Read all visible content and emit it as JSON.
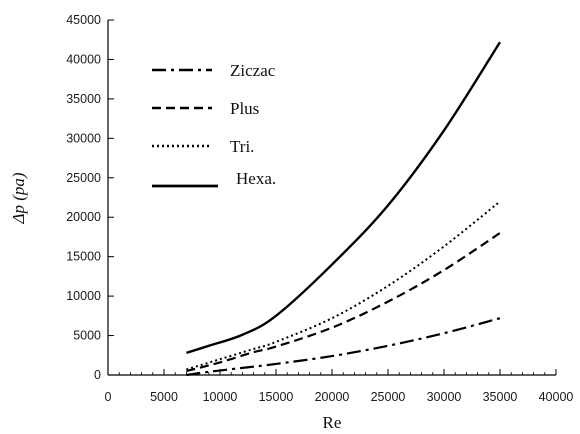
{
  "chart_data": {
    "type": "line",
    "title": "",
    "xlabel": "Re",
    "ylabel": "Δp (pa)",
    "xlim": [
      0,
      40000
    ],
    "ylim": [
      0,
      45000
    ],
    "xticks": [
      "0",
      "5000",
      "10000",
      "15000",
      "20000",
      "25000",
      "30000",
      "35000",
      "40000"
    ],
    "yticks": [
      "0",
      "5000",
      "10000",
      "15000",
      "20000",
      "25000",
      "30000",
      "35000",
      "40000",
      "45000"
    ],
    "grid": false,
    "legend_position": "top-left",
    "series": [
      {
        "name": "Ziczac",
        "line_style": "dash-dot",
        "color": "#000000",
        "points": [
          [
            7000,
            0
          ],
          [
            9000,
            400
          ],
          [
            12000,
            900
          ],
          [
            15000,
            1400
          ],
          [
            20000,
            2400
          ],
          [
            25000,
            3700
          ],
          [
            30000,
            5300
          ],
          [
            35000,
            7200
          ]
        ]
      },
      {
        "name": "Plus",
        "line_style": "dashed",
        "color": "#000000",
        "points": [
          [
            7000,
            500
          ],
          [
            10000,
            1600
          ],
          [
            13000,
            2900
          ],
          [
            15000,
            3600
          ],
          [
            20000,
            6000
          ],
          [
            25000,
            9300
          ],
          [
            30000,
            13300
          ],
          [
            35000,
            18000
          ]
        ]
      },
      {
        "name": "Tri.",
        "line_style": "dotted",
        "color": "#000000",
        "points": [
          [
            7000,
            700
          ],
          [
            10000,
            2000
          ],
          [
            13000,
            3300
          ],
          [
            15000,
            4200
          ],
          [
            20000,
            7200
          ],
          [
            25000,
            11300
          ],
          [
            30000,
            16300
          ],
          [
            35000,
            22000
          ]
        ]
      },
      {
        "name": "Hexa.",
        "line_style": "solid",
        "color": "#000000",
        "points": [
          [
            7000,
            2800
          ],
          [
            9000,
            3700
          ],
          [
            12000,
            5100
          ],
          [
            15000,
            7500
          ],
          [
            20000,
            14000
          ],
          [
            25000,
            21500
          ],
          [
            30000,
            31000
          ],
          [
            35000,
            42200
          ]
        ]
      }
    ]
  }
}
